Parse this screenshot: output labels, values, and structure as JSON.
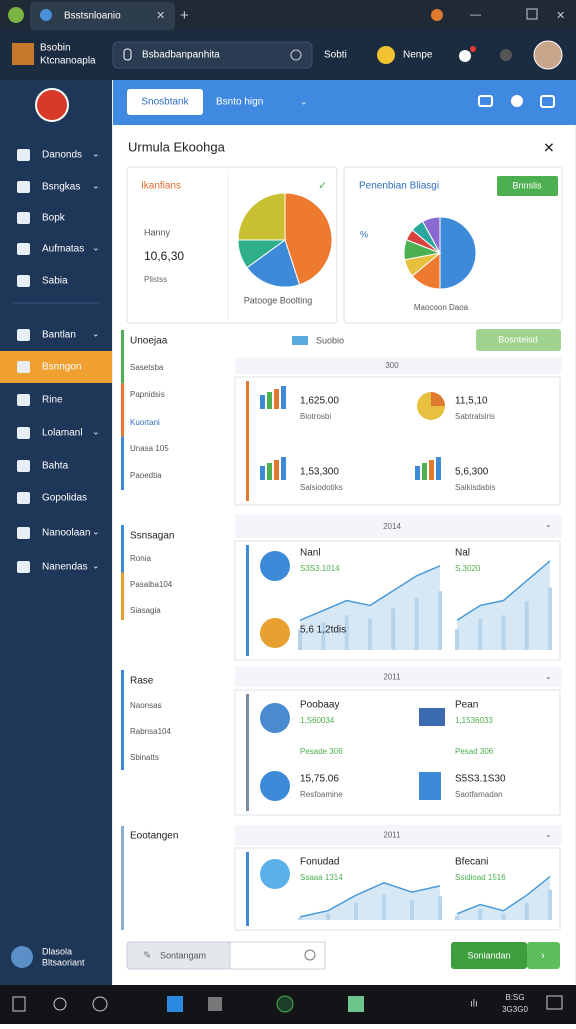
{
  "browser": {
    "tab_title": "Bsstsnloanio"
  },
  "header": {
    "brand": [
      "Bsobin",
      "Ktcnanoapla"
    ],
    "search": "Bsbadbanpanhita",
    "link": "Sobti",
    "user": "Nenpe"
  },
  "sidebar": {
    "items": [
      "Danonds",
      "Bsngkas",
      "Bopk",
      "Aufmatas",
      "Sabia",
      "Bantlan",
      "Bsnngon",
      "Rine",
      "Lolamanl",
      "Bahta",
      "Gopolidas",
      "Nanoolaan",
      "Nanendas"
    ],
    "active": 6,
    "footer": [
      "Dlasola",
      "Bltsaoriant"
    ]
  },
  "toolbar": {
    "button": "Snosbtank",
    "menu": "Bsnto hign"
  },
  "panel": {
    "title": "Urmula Ekoohga",
    "card1": {
      "title": "Ikanfians",
      "label": "Hanny",
      "value": "10,6,30",
      "sublabel": "Plistss",
      "caption": "Patooge Boolting",
      "pie": {
        "values": [
          45,
          20,
          10,
          25
        ],
        "colors": [
          "#ee7a30",
          "#3c8ad8",
          "#2fae8a",
          "#c8c030"
        ]
      }
    },
    "card2": {
      "title": "Penenbian Bliasgi",
      "button": "Bnnslis",
      "legend": "%",
      "caption": "Maocoon Daoa",
      "pie": {
        "values": [
          50,
          14,
          8,
          9,
          5,
          6,
          8
        ],
        "colors": [
          "#3c8ad8",
          "#ee7a30",
          "#e8c040",
          "#4caf50",
          "#d84040",
          "#2aa8a0",
          "#8a6ad0"
        ]
      }
    },
    "groups": [
      {
        "title": "Unoejaa",
        "items": [
          "Sasetsba",
          "Papnidsis",
          "Kuortani",
          "Unasa 105",
          "Paoedtia"
        ]
      },
      {
        "title": "Ssnsagan",
        "items": [
          "Ronia",
          "Pasaiba104",
          "Siasagia"
        ]
      },
      {
        "title": "Rase",
        "items": [
          "Naonsas",
          "Rabnsa104",
          "Sbinatts"
        ]
      },
      {
        "title": "Eootangen",
        "items": []
      }
    ],
    "filter": "Suobio",
    "filter_button": "Bosnteisd",
    "cards": [
      {
        "header": "300",
        "items": [
          {
            "title": "1,625.00",
            "detail": "Biotrosbi"
          },
          {
            "title": "11,5,10",
            "detail": "Sabtratsiris"
          },
          {
            "title": "1,53,300",
            "detail": "Salsiodotiks"
          },
          {
            "title": "5,6,300",
            "detail": "Saikisdabis"
          }
        ]
      },
      {
        "header": "2014",
        "items": [
          {
            "title": "Nanl",
            "detail": "S3S3.1014"
          },
          {
            "title": "Nal",
            "detail": "S.3020"
          },
          {
            "title": "5,6 1,2tdis"
          }
        ]
      },
      {
        "header": "2011",
        "items": [
          {
            "title": "Poobaay",
            "detail": "1,S60034"
          },
          {
            "title": "Pean",
            "detail": "1,1536033"
          },
          {
            "title": "Pesade 306"
          },
          {
            "title": "Pesad 306"
          },
          {
            "title": "15,75.06",
            "detail": "Resfoamine"
          },
          {
            "title": "S5S3.1S30",
            "detail": "Saotfamadan"
          }
        ]
      },
      {
        "header": "2011",
        "items": [
          {
            "title": "Fonudad",
            "detail": "Ssaaa 1314"
          },
          {
            "title": "Bfecani",
            "detail": "Ssidioad 1516"
          }
        ]
      }
    ],
    "input_button": "Sontangam",
    "submit": "Soniandan"
  },
  "taskbar": {
    "clock": [
      "B:SG",
      "3G3G0"
    ]
  }
}
